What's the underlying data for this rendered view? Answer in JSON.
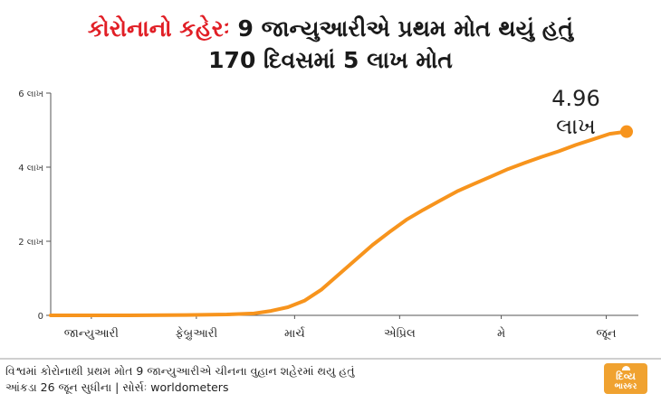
{
  "title": {
    "line1_accent": "કોરોનાનો કહેરઃ",
    "line1_rest": " 9 જાન્યુઆરીએ પ્રથમ મોત થયું હતું",
    "line2": "170 દિવસમાં 5 લાખ મોત"
  },
  "footer": {
    "line1": "વિશ્વમાં કોરોનાથી પ્રથમ મોત 9  જાન્યુઆરીએ ચીનના વુહાન શહેરમાં થયુ હતું",
    "line2": "આંકડા 26 જૂન સુધીના | સોર્સઃ worldometers"
  },
  "logo": {
    "line1": "દિવ્ય",
    "line2": "ભાસ્કર"
  },
  "colors": {
    "accent": "#e11f26",
    "series": "#f7941d",
    "axis": "#555555",
    "logo": "#f0a230"
  },
  "chart_data": {
    "type": "line",
    "title": "",
    "xlabel": "",
    "ylabel": "",
    "ylim": [
      0,
      600000
    ],
    "yticks": [
      {
        "value": 0,
        "label": "0"
      },
      {
        "value": 200000,
        "label": "2 લાખ"
      },
      {
        "value": 400000,
        "label": "4 લાખ"
      },
      {
        "value": 600000,
        "label": "6 લાખ"
      }
    ],
    "xlim": [
      0,
      170
    ],
    "xticks": [
      {
        "value": 12,
        "label": "જાન્યુઆરી"
      },
      {
        "value": 43,
        "label": "ફેબ્રુઆરી"
      },
      {
        "value": 72,
        "label": "માર્ચ"
      },
      {
        "value": 103,
        "label": "એપ્રિલ"
      },
      {
        "value": 133,
        "label": "મે"
      },
      {
        "value": 164,
        "label": "જૂન"
      }
    ],
    "grid": false,
    "legend": "none",
    "series": [
      {
        "values": [
          [
            0,
            0
          ],
          [
            23,
            0
          ],
          [
            40,
            1000
          ],
          [
            52,
            2500
          ],
          [
            60,
            5000
          ],
          [
            65,
            12000
          ],
          [
            70,
            22000
          ],
          [
            75,
            40000
          ],
          [
            80,
            70000
          ],
          [
            85,
            110000
          ],
          [
            90,
            150000
          ],
          [
            95,
            190000
          ],
          [
            100,
            225000
          ],
          [
            105,
            258000
          ],
          [
            110,
            285000
          ],
          [
            115,
            310000
          ],
          [
            120,
            335000
          ],
          [
            125,
            355000
          ],
          [
            130,
            375000
          ],
          [
            135,
            395000
          ],
          [
            140,
            412000
          ],
          [
            145,
            428000
          ],
          [
            150,
            443000
          ],
          [
            155,
            460000
          ],
          [
            160,
            475000
          ],
          [
            165,
            490000
          ],
          [
            170,
            496000
          ]
        ]
      }
    ],
    "annotations": [
      {
        "x": 170,
        "y": 496000,
        "label_line1": "4.96",
        "label_line2": "લાખ"
      }
    ]
  }
}
